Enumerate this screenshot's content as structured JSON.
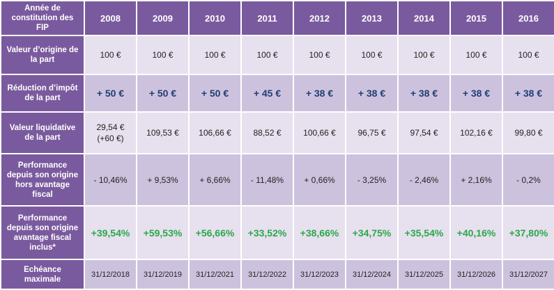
{
  "header": {
    "corner_label": "Année de constitution des FIP",
    "years": [
      "2008",
      "2009",
      "2010",
      "2011",
      "2012",
      "2013",
      "2014",
      "2015",
      "2016"
    ]
  },
  "rows": [
    {
      "label": "Valeur d’origine de la part",
      "values": [
        "100 €",
        "100 €",
        "100 €",
        "100 €",
        "100 €",
        "100 €",
        "100 €",
        "100 €",
        "100 €"
      ]
    },
    {
      "label": "Réduction d’impôt de la part",
      "values": [
        "+ 50 €",
        "+ 50 €",
        "+ 50 €",
        "+ 45 €",
        "+ 38 €",
        "+ 38 €",
        "+ 38 €",
        "+ 38 €",
        "+ 38 €"
      ]
    },
    {
      "label": "Valeur liquidative de la part",
      "values": [
        "29,54 €",
        "109,53 €",
        "106,66 €",
        "88,52 €",
        "100,66 €",
        "96,75 €",
        "97,54 €",
        "102,16 €",
        "99,80 €"
      ],
      "first_note": "(+60 €)"
    },
    {
      "label": "Performance depuis son origine hors avantage fiscal",
      "values": [
        "- 10,46%",
        "+ 9,53%",
        "+ 6,66%",
        "- 11,48%",
        "+ 0,66%",
        "- 3,25%",
        "- 2,46%",
        "+ 2,16%",
        "- 0,2%"
      ]
    },
    {
      "label": "Performance depuis son origine avantage fiscal inclus*",
      "values": [
        "+39,54%",
        "+59,53%",
        "+56,66%",
        "+33,52%",
        "+38,66%",
        "+34,75%",
        "+35,54%",
        "+40,16%",
        "+37,80%"
      ]
    },
    {
      "label": "Echéance maximale",
      "values": [
        "31/12/2018",
        "31/12/2019",
        "31/12/2021",
        "31/12/2022",
        "31/12/2023",
        "31/12/2024",
        "31/12/2025",
        "31/12/2026",
        "31/12/2027"
      ]
    }
  ],
  "colors": {
    "header_bg": "#7a5a9e",
    "row_light": "#e7e0ee",
    "row_dark": "#cdc2dd",
    "tax_text": "#1f3f74",
    "perf_text": "#2aa84a"
  }
}
